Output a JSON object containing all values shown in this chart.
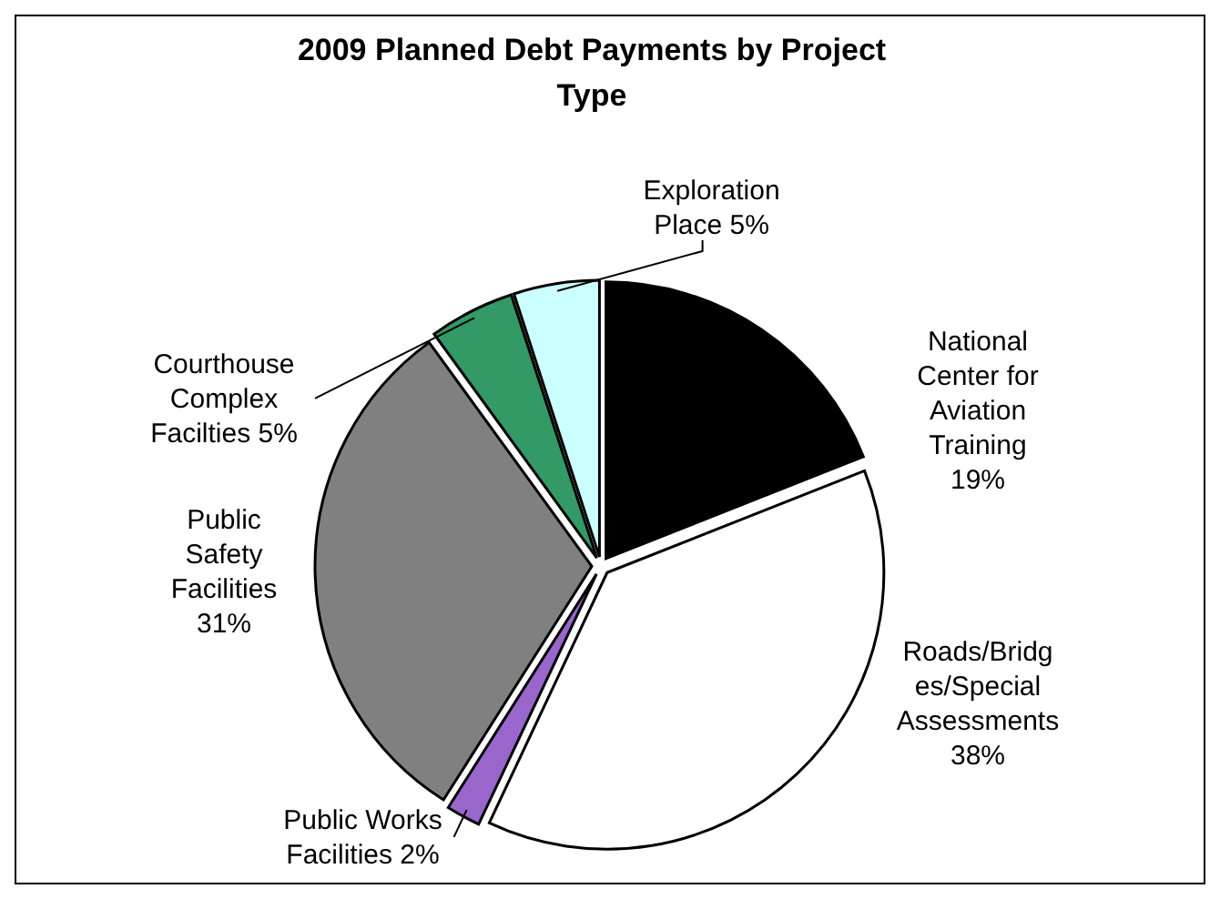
{
  "chart_data": {
    "type": "pie",
    "title": "2009 Planned Debt Payments by Project Type",
    "categories": [
      "National Center for Aviation Training",
      "Roads/Bridges/Special Assessments",
      "Public Works Facilities",
      "Public Safety Facilities",
      "Courthouse Complex Facilties",
      "Exploration Place"
    ],
    "values": [
      19,
      38,
      2,
      31,
      5,
      5
    ],
    "value_labels": [
      "19%",
      "38%",
      "2%",
      "31%",
      "5%",
      "5%"
    ],
    "colors": [
      "#000000",
      "#ffffff",
      "#9966cc",
      "#808080",
      "#339966",
      "#ccffff"
    ]
  }
}
